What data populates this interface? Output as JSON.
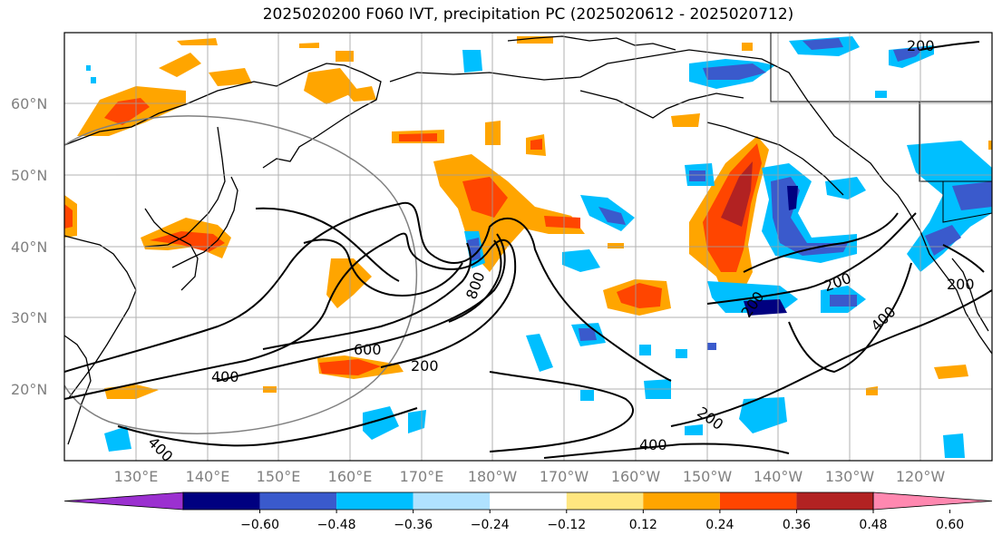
{
  "title": "2025020200 F060 IVT, precipitation PC (2025020612 - 2025020712)",
  "lat_labels": [
    "60°N",
    "50°N",
    "40°N",
    "30°N",
    "20°N"
  ],
  "lon_labels": [
    "130°E",
    "140°E",
    "150°E",
    "160°E",
    "170°E",
    "180°W",
    "170°W",
    "160°W",
    "150°W",
    "140°W",
    "130°W",
    "120°W"
  ],
  "contour_labels": [
    "200",
    "400",
    "600",
    "800",
    "200",
    "400",
    "200",
    "200",
    "400",
    "200",
    "200",
    "400"
  ],
  "colorbar": {
    "ticks": [
      "−0.60",
      "−0.48",
      "−0.36",
      "−0.24",
      "−0.12",
      "0.12",
      "0.24",
      "0.36",
      "0.48",
      "0.60"
    ],
    "colors": [
      "#9b30d0",
      "#000080",
      "#3a5acc",
      "#00bfff",
      "#b0e2ff",
      "#ffffff",
      "#ffe680",
      "#ffa500",
      "#ff4500",
      "#b22222",
      "#ff88b0"
    ]
  }
}
